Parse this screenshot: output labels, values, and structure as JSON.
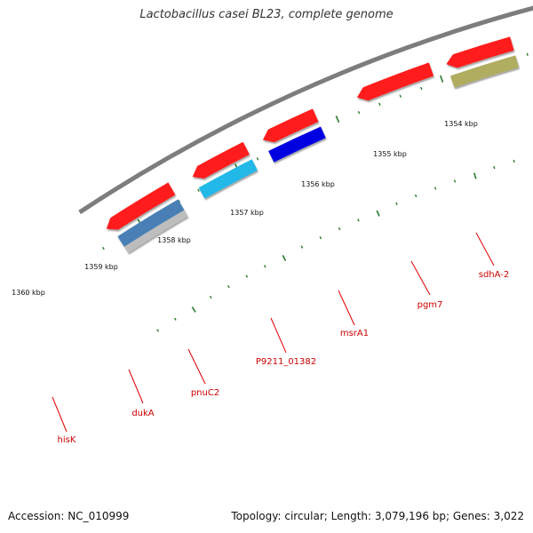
{
  "title": "Lactobacillus casei BL23, complete genome",
  "accession_text": "Accession: NC_010999",
  "summary_text": "Topology: circular; Length: 3,079,196 bp; Genes: 3,022",
  "colors": {
    "backbone": "#7d7d7d",
    "ticks": "#2a7a2a",
    "label_line": "#e00000",
    "label_text": "#cc0000"
  },
  "scale": {
    "unit": "kbp",
    "labels": [
      "1354 kbp",
      "1355 kbp",
      "1356 kbp",
      "1357 kbp",
      "1358 kbp",
      "1359 kbp",
      "1360 kbp"
    ]
  },
  "features": [
    {
      "track": "outer",
      "color": "#ff1c1c"
    },
    {
      "track": "outer",
      "color": "#ff1c1c"
    },
    {
      "track": "outer",
      "color": "#ff1c1c"
    },
    {
      "track": "outer",
      "color": "#ff1c1c"
    },
    {
      "track": "outer",
      "color": "#ff1c1c"
    },
    {
      "track": "outer",
      "color": "#ff1c1c"
    },
    {
      "track": "outer",
      "color": "#ff1c1c"
    },
    {
      "track": "outer",
      "color": "#ff1c1c"
    },
    {
      "track": "outer",
      "color": "#ff1c1c"
    },
    {
      "track": "inner",
      "color": "#4a7fb5"
    },
    {
      "track": "inner2",
      "color": "#bdbdbd"
    },
    {
      "track": "inner",
      "color": "#22b8e8"
    },
    {
      "track": "inner",
      "color": "#0000e0"
    },
    {
      "track": "inner",
      "color": "#b0ac60"
    },
    {
      "track": "inner",
      "color": "#1cc4c4"
    },
    {
      "track": "inner",
      "color": "#4a7fb5"
    },
    {
      "track": "inner",
      "color": "#4a7fb5"
    }
  ],
  "gene_labels": [
    "hisK",
    "dukA",
    "pnuC2",
    "P9211_01382",
    "msrA1",
    "pgm7",
    "sdhA-2"
  ]
}
